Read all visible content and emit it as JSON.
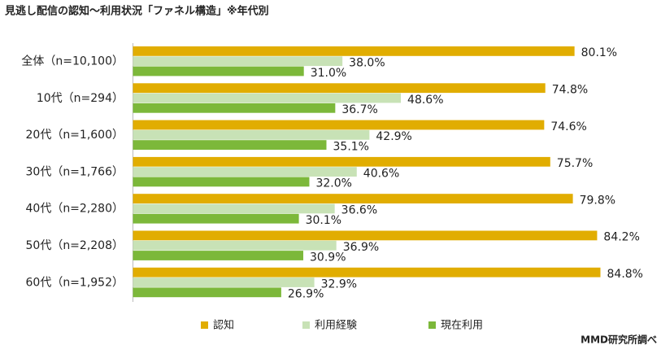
{
  "chart_data": {
    "type": "bar",
    "orientation": "horizontal",
    "title": "見逃し配信の認知～利用状況「ファネル構造」※年代別",
    "categories": [
      "全体（n=10,100）",
      "10代（n=294）",
      "20代（n=1,600）",
      "30代（n=1,766）",
      "40代（n=2,280）",
      "50代（n=2,208）",
      "60代（n=1,952）"
    ],
    "series": [
      {
        "name": "認知",
        "color": "#e1ad01",
        "values": [
          80.1,
          74.8,
          74.6,
          75.7,
          79.8,
          84.2,
          84.8
        ],
        "value_labels": [
          "80.1%",
          "74.8%",
          "74.6%",
          "75.7%",
          "79.8%",
          "84.2%",
          "84.8%"
        ]
      },
      {
        "name": "利用経験",
        "color": "#c8e2b6",
        "values": [
          38.0,
          48.6,
          42.9,
          40.6,
          36.6,
          36.9,
          32.9
        ],
        "value_labels": [
          "38.0%",
          "48.6%",
          "42.9%",
          "40.6%",
          "36.6%",
          "36.9%",
          "32.9%"
        ]
      },
      {
        "name": "現在利用",
        "color": "#7cb83a",
        "values": [
          31.0,
          36.7,
          35.1,
          32.0,
          30.1,
          30.9,
          26.9
        ],
        "value_labels": [
          "31.0%",
          "36.7%",
          "35.1%",
          "32.0%",
          "30.1%",
          "30.9%",
          "26.9%"
        ]
      }
    ],
    "source": "MMD研究所調べ"
  }
}
